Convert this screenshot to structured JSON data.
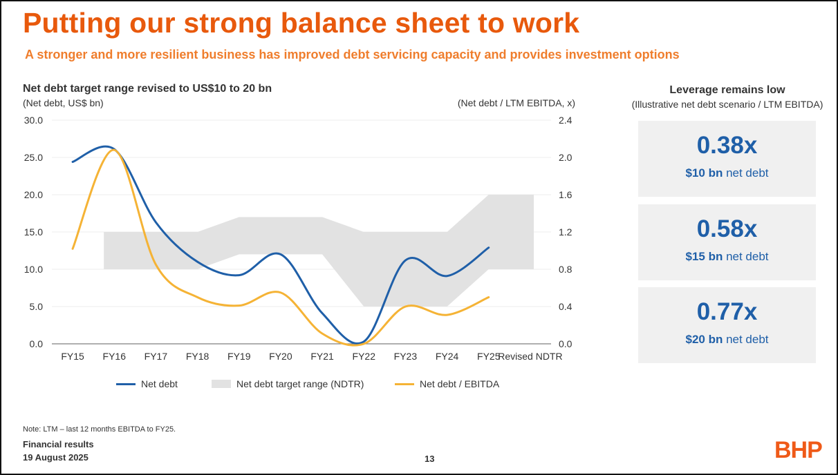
{
  "header": {
    "title": "Putting our strong balance sheet to work",
    "subtitle": "A stronger and more resilient business has improved debt servicing capacity and provides investment options"
  },
  "chart_data": {
    "type": "line",
    "title": "Net debt target range revised to US$10 to 20 bn",
    "ylabel": "(Net debt, US$ bn)",
    "y2label": "(Net debt / LTM EBITDA, x)",
    "ylim": [
      0,
      30
    ],
    "y2lim": [
      0,
      2.4
    ],
    "yticks": [
      "0.0",
      "5.0",
      "10.0",
      "15.0",
      "20.0",
      "25.0",
      "30.0"
    ],
    "y2ticks": [
      "0.0",
      "0.4",
      "0.8",
      "1.2",
      "1.6",
      "2.0",
      "2.4"
    ],
    "categories": [
      "FY15",
      "FY16",
      "FY17",
      "FY18",
      "FY19",
      "FY20",
      "FY21",
      "FY22",
      "FY23",
      "FY24",
      "FY25",
      "Revised NDTR"
    ],
    "series": [
      {
        "name": "Net debt",
        "axis": "left",
        "color": "#1f5fa8",
        "values": [
          24.4,
          26.1,
          16.3,
          11.0,
          9.2,
          12.0,
          4.1,
          0.3,
          11.2,
          9.1,
          12.9,
          null
        ]
      },
      {
        "name": "Net debt / EBITDA",
        "axis": "right",
        "color": "#f5b335",
        "values": [
          1.02,
          2.08,
          0.85,
          0.5,
          0.41,
          0.55,
          0.11,
          0.0,
          0.4,
          0.31,
          0.5,
          null
        ]
      }
    ],
    "range_band": {
      "name": "Net debt target range (NDTR)",
      "color": "#e2e2e2",
      "low": [
        null,
        10,
        10,
        10,
        12,
        12,
        12,
        5,
        5,
        5,
        10,
        10
      ],
      "high": [
        null,
        15,
        15,
        15,
        17,
        17,
        17,
        15,
        15,
        15,
        20,
        20
      ]
    },
    "legend": [
      "Net debt",
      "Net debt target range (NDTR)",
      "Net debt / EBITDA"
    ],
    "legend_position": "bottom"
  },
  "leverage": {
    "title": "Leverage remains low",
    "subtitle": "(Illustrative net debt scenario / LTM EBITDA)",
    "items": [
      {
        "value": "0.38x",
        "amount": "$10 bn",
        "suffix": " net debt"
      },
      {
        "value": "0.58x",
        "amount": "$15 bn",
        "suffix": " net debt"
      },
      {
        "value": "0.77x",
        "amount": "$20 bn",
        "suffix": " net debt"
      }
    ]
  },
  "footer": {
    "note": "Note: LTM – last 12 months EBITDA to FY25.",
    "line1": "Financial results",
    "line2": "19 August 2025",
    "page": "13",
    "logo": "BHP"
  }
}
